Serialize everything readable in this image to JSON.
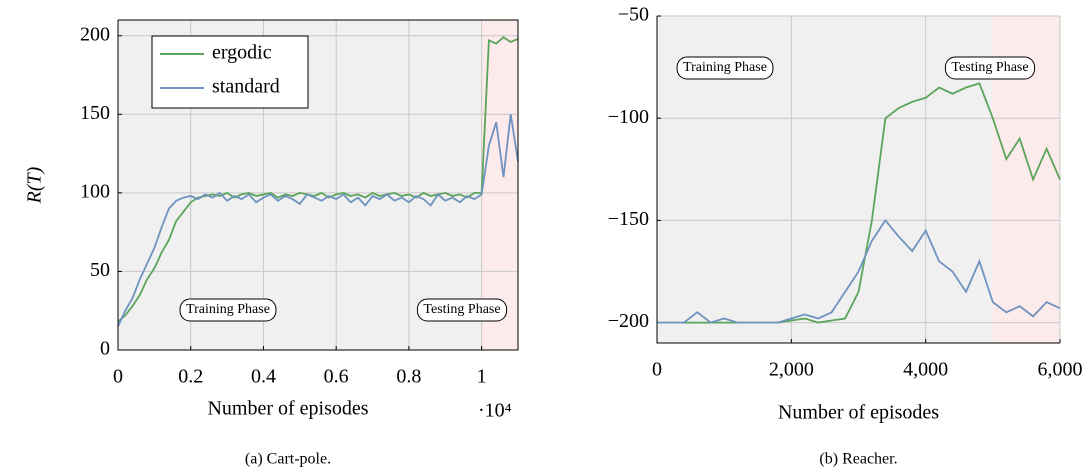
{
  "chart_data": [
    {
      "type": "line",
      "caption": "(a) Cart-pole.",
      "xlabel": "Number of episodes",
      "ylabel": "R(T)",
      "x_multiplier": "·10⁴",
      "xlim": [
        0,
        1.1
      ],
      "ylim": [
        0,
        210
      ],
      "xticks": [
        0,
        0.2,
        0.4,
        0.6,
        0.8,
        1
      ],
      "yticks": [
        0,
        50,
        100,
        150,
        200
      ],
      "grid": true,
      "legend": "upper left",
      "phases": [
        {
          "name": "Training Phase",
          "start": 0,
          "end": 1,
          "color": "#f0f0f0"
        },
        {
          "name": "Testing Phase",
          "start": 1,
          "end": 1.1,
          "color": "#fdeaea"
        }
      ],
      "x": [
        0,
        0.02,
        0.04,
        0.06,
        0.08,
        0.1,
        0.12,
        0.14,
        0.16,
        0.18,
        0.2,
        0.22,
        0.24,
        0.26,
        0.28,
        0.3,
        0.32,
        0.34,
        0.36,
        0.38,
        0.4,
        0.42,
        0.44,
        0.46,
        0.48,
        0.5,
        0.52,
        0.54,
        0.56,
        0.58,
        0.6,
        0.62,
        0.64,
        0.66,
        0.68,
        0.7,
        0.72,
        0.74,
        0.76,
        0.78,
        0.8,
        0.82,
        0.84,
        0.86,
        0.88,
        0.9,
        0.92,
        0.94,
        0.96,
        0.98,
        1,
        1.02,
        1.04,
        1.06,
        1.08,
        1.1
      ],
      "series": [
        {
          "name": "ergodic",
          "color": "#5aa55a",
          "values": [
            18,
            22,
            28,
            35,
            45,
            52,
            62,
            70,
            82,
            88,
            94,
            97,
            98,
            99,
            98,
            100,
            97,
            99,
            100,
            98,
            99,
            100,
            97,
            99,
            98,
            100,
            99,
            98,
            100,
            97,
            99,
            100,
            98,
            99,
            97,
            100,
            98,
            99,
            100,
            98,
            99,
            97,
            100,
            98,
            99,
            100,
            98,
            99,
            97,
            100,
            100,
            197,
            195,
            199,
            196,
            198
          ]
        },
        {
          "name": "standard",
          "color": "#6f93c0",
          "values": [
            15,
            25,
            33,
            45,
            55,
            65,
            78,
            90,
            95,
            97,
            98,
            96,
            99,
            97,
            100,
            95,
            98,
            96,
            99,
            94,
            97,
            99,
            95,
            98,
            96,
            93,
            99,
            97,
            95,
            98,
            96,
            99,
            94,
            97,
            92,
            98,
            96,
            99,
            95,
            97,
            94,
            98,
            96,
            92,
            99,
            95,
            97,
            94,
            98,
            96,
            99,
            130,
            145,
            110,
            150,
            120
          ]
        }
      ]
    },
    {
      "type": "line",
      "caption": "(b) Reacher.",
      "xlabel": "Number of episodes",
      "xlim": [
        0,
        6000
      ],
      "ylim": [
        -210,
        -50
      ],
      "xticks": [
        0,
        {
          "value": 2000,
          "label": "2,000"
        },
        {
          "value": 4000,
          "label": "4,000"
        },
        {
          "value": 6000,
          "label": "6,000"
        }
      ],
      "yticks": [
        {
          "value": -50,
          "label": "−50"
        },
        {
          "value": -100,
          "label": "−100"
        },
        {
          "value": -150,
          "label": "−150"
        },
        {
          "value": -200,
          "label": "−200"
        }
      ],
      "grid": true,
      "phases": [
        {
          "name": "Training Phase",
          "start": 0,
          "end": 5000,
          "color": "#f0f0f0"
        },
        {
          "name": "Testing Phase",
          "start": 5000,
          "end": 6000,
          "color": "#fdeaea"
        }
      ],
      "x": [
        0,
        200,
        400,
        600,
        800,
        1000,
        1200,
        1400,
        1600,
        1800,
        2000,
        2200,
        2400,
        2600,
        2800,
        3000,
        3200,
        3400,
        3600,
        3800,
        4000,
        4200,
        4400,
        4600,
        4800,
        5000,
        5200,
        5400,
        5600,
        5800,
        6000
      ],
      "series": [
        {
          "color": "#5aa55a",
          "values": [
            -200,
            -200,
            -200,
            -200,
            -200,
            -200,
            -200,
            -200,
            -200,
            -200,
            -199,
            -198,
            -200,
            -199,
            -198,
            -185,
            -150,
            -100,
            -95,
            -92,
            -90,
            -85,
            -88,
            -85,
            -83,
            -100,
            -120,
            -110,
            -130,
            -115,
            -130
          ]
        },
        {
          "color": "#6f93c0",
          "values": [
            -200,
            -200,
            -200,
            -195,
            -200,
            -198,
            -200,
            -200,
            -200,
            -200,
            -198,
            -196,
            -198,
            -195,
            -185,
            -175,
            -160,
            -150,
            -158,
            -165,
            -155,
            -170,
            -175,
            -185,
            -170,
            -190,
            -195,
            -192,
            -197,
            -190,
            -193
          ]
        }
      ]
    }
  ]
}
